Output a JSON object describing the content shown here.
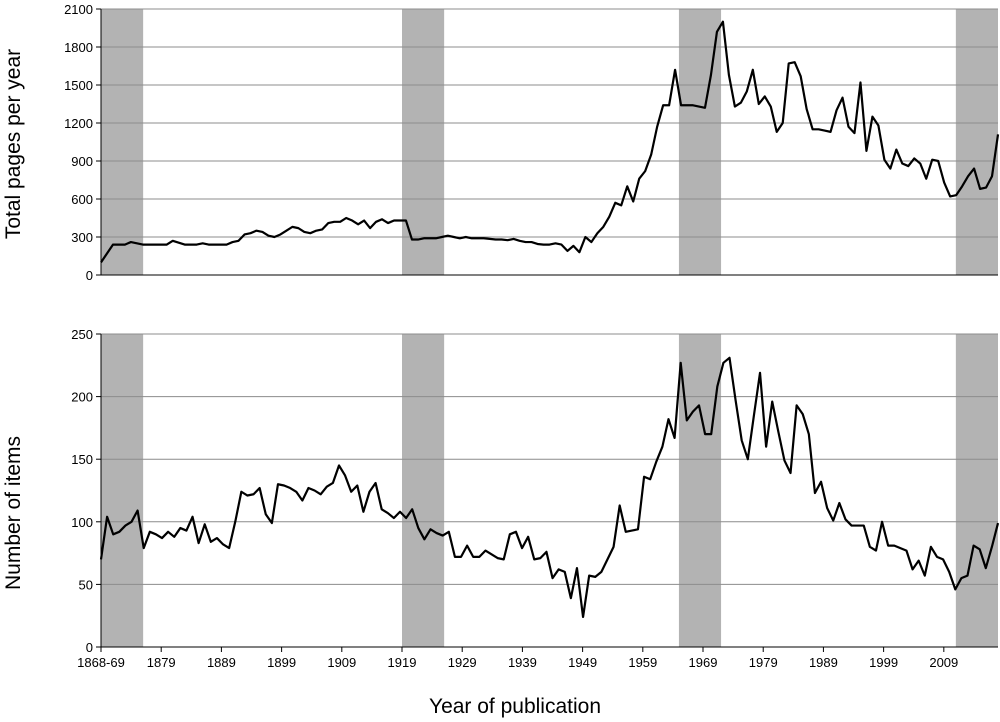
{
  "chart_data": {
    "type": "line",
    "xlabel": "Year of publication",
    "x_tick_labels": [
      "1868-69",
      "1879",
      "1889",
      "1899",
      "1909",
      "1919",
      "1929",
      "1939",
      "1949",
      "1959",
      "1969",
      "1979",
      "1989",
      "1999",
      "2009"
    ],
    "x_tick_years": [
      1869,
      1879,
      1889,
      1899,
      1909,
      1919,
      1929,
      1939,
      1949,
      1959,
      1969,
      1979,
      1989,
      1999,
      2009
    ],
    "xlim": [
      1869,
      2018
    ],
    "shaded_periods": [
      [
        1869,
        1876
      ],
      [
        1919,
        1926
      ],
      [
        1965,
        1972
      ],
      [
        2011,
        2018
      ]
    ],
    "shade_color": "#b3b3b3",
    "line_color": "#000000",
    "grid": true,
    "panels": [
      {
        "ylabel": "Total pages per year",
        "ylim": [
          0,
          2100
        ],
        "yticks": [
          0,
          300,
          600,
          900,
          1200,
          1500,
          1800,
          2100
        ],
        "values": [
          100,
          170,
          240,
          240,
          240,
          260,
          250,
          240,
          240,
          240,
          240,
          240,
          270,
          255,
          240,
          240,
          240,
          250,
          240,
          240,
          240,
          240,
          260,
          270,
          320,
          330,
          350,
          340,
          310,
          300,
          320,
          350,
          380,
          370,
          340,
          330,
          350,
          360,
          410,
          420,
          420,
          450,
          430,
          400,
          430,
          370,
          420,
          440,
          410,
          430,
          430,
          430,
          280,
          280,
          290,
          290,
          290,
          300,
          310,
          300,
          290,
          300,
          290,
          290,
          290,
          285,
          280,
          280,
          275,
          285,
          270,
          260,
          260,
          245,
          240,
          240,
          250,
          240,
          190,
          230,
          180,
          300,
          260,
          330,
          380,
          460,
          570,
          550,
          700,
          580,
          760,
          820,
          950,
          1170,
          1340,
          1340,
          1620,
          1340,
          1340,
          1340,
          1330,
          1320,
          1580,
          1920,
          2000,
          1580,
          1330,
          1360,
          1450,
          1620,
          1350,
          1410,
          1330,
          1130,
          1200,
          1670,
          1680,
          1570,
          1310,
          1150,
          1150,
          1140,
          1130,
          1300,
          1400,
          1170,
          1120,
          1520,
          980,
          1250,
          1180,
          910,
          840,
          990,
          880,
          860,
          920,
          880,
          760,
          910,
          900,
          730,
          620,
          630,
          700,
          780,
          840,
          680,
          690,
          780,
          1110
        ]
      },
      {
        "ylabel": "Number  of items",
        "ylim": [
          0,
          250
        ],
        "yticks": [
          0,
          50,
          100,
          150,
          200,
          250
        ],
        "values": [
          70,
          104,
          90,
          92,
          97,
          100,
          109,
          79,
          92,
          90,
          87,
          92,
          88,
          95,
          93,
          104,
          83,
          98,
          84,
          87,
          82,
          79,
          100,
          124,
          121,
          122,
          127,
          106,
          99,
          130,
          129,
          127,
          124,
          117,
          127,
          125,
          122,
          128,
          131,
          145,
          137,
          124,
          129,
          108,
          124,
          131,
          110,
          107,
          103,
          108,
          103,
          110,
          95,
          86,
          94,
          91,
          89,
          92,
          72,
          72,
          81,
          72,
          72,
          77,
          74,
          71,
          70,
          90,
          92,
          79,
          88,
          70,
          71,
          76,
          55,
          62,
          60,
          39,
          63,
          24,
          57,
          56,
          60,
          70,
          80,
          113,
          92,
          93,
          94,
          136,
          134,
          148,
          160,
          182,
          167,
          227,
          181,
          188,
          193,
          170,
          170,
          208,
          227,
          231,
          197,
          165,
          150,
          185,
          219,
          160,
          196,
          172,
          149,
          139,
          193,
          186,
          170,
          123,
          132,
          111,
          101,
          115,
          102,
          97,
          97,
          97,
          80,
          77,
          100,
          81,
          81,
          79,
          77,
          62,
          69,
          57,
          80,
          72,
          70,
          60,
          46,
          55,
          57,
          81,
          78,
          63,
          80,
          99
        ]
      }
    ]
  }
}
